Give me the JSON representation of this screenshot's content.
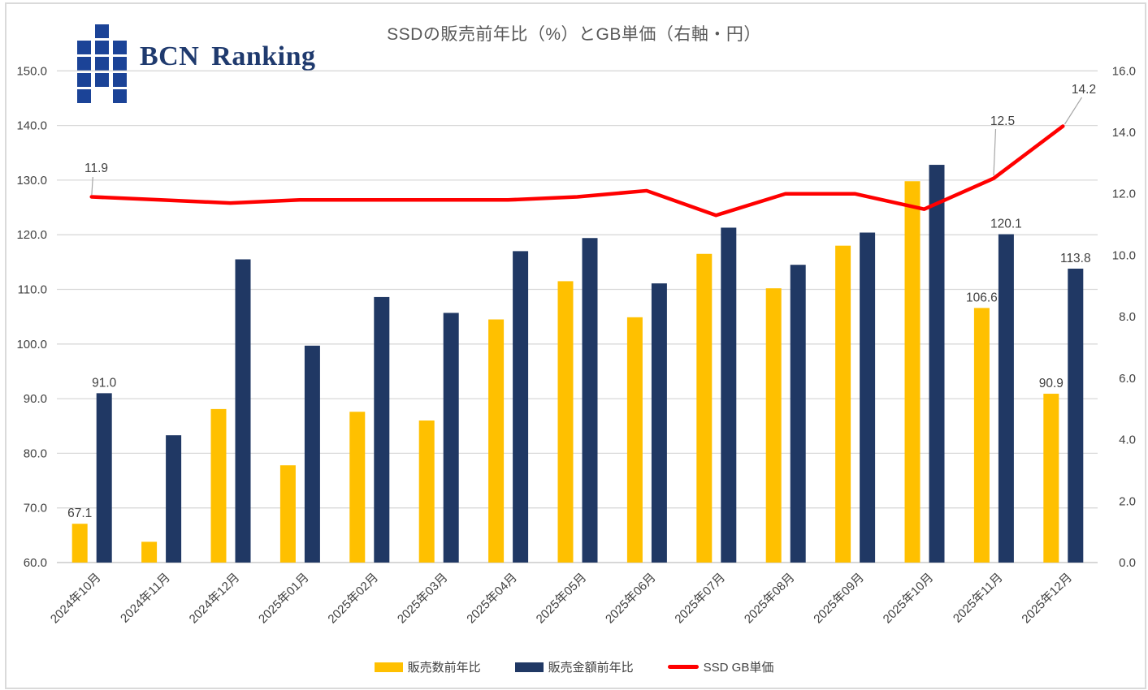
{
  "logo": {
    "text": "BCN Ranking"
  },
  "colors": {
    "grid": "#d9d9d9",
    "baseline": "#bfbfbf",
    "axis_text": "#404040",
    "title_text": "#595959",
    "data_label_text": "#404040",
    "leader_line": "#a6a6a6",
    "frame": "#dadada",
    "logo_blue": "#1b4397",
    "logo_text": "#1f3a6e",
    "bar_yellow": "#FFC000",
    "bar_navy": "#203864",
    "line_red": "#FF0000"
  },
  "chart_data": {
    "type": "bar",
    "subtype": "combo-bar-line",
    "title": "SSDの販売前年比（%）とGB単価（右軸・円）",
    "categories": [
      "2024年10月",
      "2024年11月",
      "2024年12月",
      "2025年01月",
      "2025年02月",
      "2025年03月",
      "2025年04月",
      "2025年05月",
      "2025年06月",
      "2025年07月",
      "2025年08月",
      "2025年09月",
      "2025年10月",
      "2025年11月",
      "2025年12月"
    ],
    "series": [
      {
        "name": "販売数前年比",
        "type": "bar",
        "axis": "left",
        "color": "#FFC000",
        "values": [
          67.1,
          63.8,
          88.1,
          77.8,
          87.6,
          86.0,
          104.5,
          111.5,
          104.9,
          116.5,
          110.2,
          118.0,
          129.8,
          106.6,
          90.9
        ],
        "labels": {
          "0": "67.1",
          "13": "106.6",
          "14": "90.9"
        }
      },
      {
        "name": "販売金額前年比",
        "type": "bar",
        "axis": "left",
        "color": "#203864",
        "values": [
          91.0,
          83.3,
          115.5,
          99.7,
          108.6,
          105.7,
          117.0,
          119.4,
          111.1,
          121.3,
          114.5,
          120.4,
          132.8,
          120.1,
          113.8
        ],
        "labels": {
          "0": "91.0",
          "13": "120.1",
          "14": "113.8"
        }
      },
      {
        "name": "SSD GB単価",
        "type": "line",
        "axis": "right",
        "color": "#FF0000",
        "values": [
          11.9,
          11.8,
          11.7,
          11.8,
          11.8,
          11.8,
          11.8,
          11.9,
          12.1,
          11.3,
          12.0,
          12.0,
          11.5,
          12.5,
          14.2
        ],
        "labels": {
          "0": "11.9",
          "13": "12.5",
          "14": "14.2"
        }
      }
    ],
    "left_axis": {
      "min": 60,
      "max": 150,
      "step": 10,
      "tick_labels": [
        "60.0",
        "70.0",
        "80.0",
        "90.0",
        "100.0",
        "110.0",
        "120.0",
        "130.0",
        "140.0",
        "150.0"
      ]
    },
    "right_axis": {
      "min": 0,
      "max": 16,
      "step": 2,
      "tick_labels": [
        "0.0",
        "2.0",
        "4.0",
        "6.0",
        "8.0",
        "10.0",
        "12.0",
        "14.0",
        "16.0"
      ]
    },
    "grid": true,
    "legend_position": "bottom"
  }
}
